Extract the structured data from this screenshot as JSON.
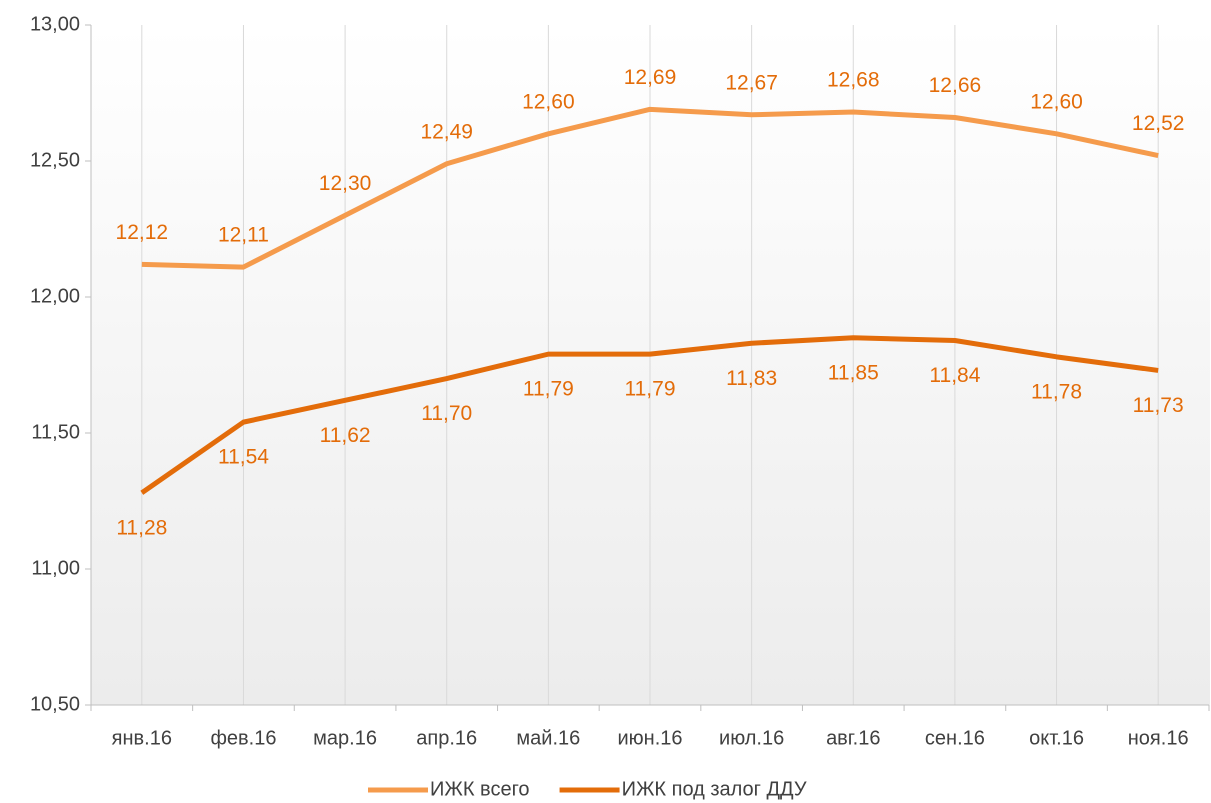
{
  "chart_data": {
    "type": "line",
    "categories": [
      "янв.16",
      "фев.16",
      "мар.16",
      "апр.16",
      "май.16",
      "июн.16",
      "июл.16",
      "авг.16",
      "сен.16",
      "окт.16",
      "ноя.16"
    ],
    "series": [
      {
        "name": "ИЖК всего",
        "color": "#f59b4c",
        "values": [
          12.12,
          12.11,
          12.3,
          12.49,
          12.6,
          12.69,
          12.67,
          12.68,
          12.66,
          12.6,
          12.52
        ],
        "value_labels": [
          "12,12",
          "12,11",
          "12,30",
          "12,49",
          "12,60",
          "12,69",
          "12,67",
          "12,68",
          "12,66",
          "12,60",
          "12,52"
        ]
      },
      {
        "name": "ИЖК под залог ДДУ",
        "color": "#e36c0a",
        "values": [
          11.28,
          11.54,
          11.62,
          11.7,
          11.79,
          11.79,
          11.83,
          11.85,
          11.84,
          11.78,
          11.73
        ],
        "value_labels": [
          "11,28",
          "11,54",
          "11,62",
          "11,70",
          "11,79",
          "11,79",
          "11,83",
          "11,85",
          "11,84",
          "11,78",
          "11,73"
        ]
      }
    ],
    "ylim": [
      10.5,
      13.0
    ],
    "yticks": [
      {
        "value": 10.5,
        "label": "10,50"
      },
      {
        "value": 11.0,
        "label": "11,00"
      },
      {
        "value": 11.5,
        "label": "11,50"
      },
      {
        "value": 12.0,
        "label": "12,00"
      },
      {
        "value": 12.5,
        "label": "12,50"
      },
      {
        "value": 13.0,
        "label": "13,00"
      }
    ],
    "legend": "bottom"
  }
}
